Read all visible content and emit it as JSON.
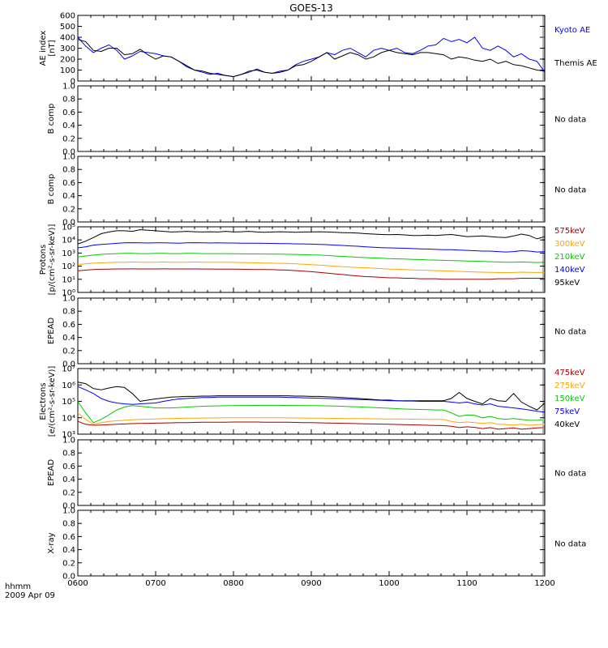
{
  "title": "GOES-13",
  "footer": {
    "line1": "hhmm",
    "line2": "2009 Apr 09"
  },
  "time_ticks": [
    "0600",
    "0700",
    "0800",
    "0900",
    "1000",
    "1100",
    "1200"
  ],
  "no_data_text": "No data",
  "chart_data": [
    {
      "type": "line",
      "id": "ae",
      "ylabel": [
        "AE index",
        "[nT]"
      ],
      "ylim": [
        0,
        600
      ],
      "yticks": [
        "0",
        "100",
        "200",
        "300",
        "400",
        "500",
        "600"
      ],
      "x_hours": [
        6.0,
        6.1,
        6.2,
        6.3,
        6.4,
        6.5,
        6.6,
        6.7,
        6.8,
        6.9,
        7.0,
        7.1,
        7.2,
        7.3,
        7.4,
        7.5,
        7.6,
        7.7,
        7.8,
        7.9,
        8.0,
        8.1,
        8.2,
        8.3,
        8.4,
        8.5,
        8.6,
        8.7,
        8.8,
        8.9,
        9.0,
        9.1,
        9.2,
        9.3,
        9.4,
        9.5,
        9.6,
        9.7,
        9.8,
        9.9,
        10.0,
        10.1,
        10.2,
        10.3,
        10.4,
        10.5,
        10.6,
        10.7,
        10.8,
        10.9,
        11.0,
        11.1,
        11.2,
        11.3,
        11.4,
        11.5,
        11.6,
        11.7,
        11.8,
        11.9,
        12.0
      ],
      "series": [
        {
          "name": "Kyoto AE",
          "color": "#0000ff",
          "values": [
            400,
            320,
            260,
            300,
            330,
            280,
            200,
            230,
            270,
            260,
            250,
            230,
            220,
            180,
            130,
            100,
            80,
            60,
            70,
            50,
            40,
            60,
            80,
            110,
            80,
            70,
            90,
            100,
            150,
            180,
            200,
            220,
            260,
            240,
            280,
            300,
            260,
            220,
            280,
            300,
            280,
            300,
            260,
            250,
            280,
            320,
            330,
            390,
            360,
            380,
            350,
            400,
            300,
            280,
            320,
            280,
            220,
            250,
            200,
            180,
            80
          ]
        },
        {
          "name": "Themis AE",
          "color": "#000000",
          "values": [
            380,
            360,
            280,
            270,
            300,
            300,
            240,
            250,
            290,
            240,
            200,
            230,
            220,
            180,
            140,
            100,
            90,
            70,
            60,
            50,
            40,
            60,
            90,
            100,
            80,
            70,
            80,
            100,
            140,
            150,
            180,
            220,
            260,
            200,
            230,
            260,
            240,
            200,
            220,
            260,
            280,
            260,
            250,
            240,
            260,
            260,
            250,
            240,
            200,
            220,
            210,
            190,
            180,
            200,
            160,
            180,
            150,
            140,
            120,
            100,
            90
          ]
        }
      ]
    },
    {
      "type": "line",
      "id": "bcomp1",
      "ylabel": [
        "B comp"
      ],
      "ylim": [
        0,
        1
      ],
      "yticks": [
        "0.0",
        "0.2",
        "0.4",
        "0.6",
        "0.8",
        "1.0"
      ],
      "series": []
    },
    {
      "type": "line",
      "id": "bcomp2",
      "ylabel": [
        "B comp"
      ],
      "ylim": [
        0,
        1
      ],
      "yticks": [
        "0.0",
        "0.2",
        "0.4",
        "0.6",
        "0.8",
        "1.0"
      ],
      "series": []
    },
    {
      "type": "line",
      "id": "protons",
      "log_scale": true,
      "ylabel": [
        "Protons",
        "[p/(cm²-s-sr-keV)]"
      ],
      "ylim": [
        1,
        100000
      ],
      "yticks": [
        "10⁰",
        "10¹",
        "10²",
        "10³",
        "10⁴",
        "10⁵"
      ],
      "x_hours": [
        6.0,
        6.1,
        6.2,
        6.3,
        6.4,
        6.5,
        6.6,
        6.7,
        6.8,
        6.9,
        7.0,
        7.1,
        7.2,
        7.3,
        7.4,
        7.5,
        7.6,
        7.7,
        7.8,
        7.9,
        8.0,
        8.1,
        8.2,
        8.3,
        8.4,
        8.5,
        8.6,
        8.7,
        8.8,
        8.9,
        9.0,
        9.1,
        9.2,
        9.3,
        9.4,
        9.5,
        9.6,
        9.7,
        9.8,
        9.9,
        10.0,
        10.1,
        10.2,
        10.3,
        10.4,
        10.5,
        10.6,
        10.7,
        10.8,
        10.9,
        11.0,
        11.1,
        11.2,
        11.3,
        11.4,
        11.5,
        11.6,
        11.7,
        11.8,
        11.9,
        12.0
      ],
      "series": [
        {
          "name": "95keV",
          "color": "#000000",
          "values": [
            5000,
            8000,
            15000,
            30000,
            40000,
            50000,
            50000,
            45000,
            60000,
            55000,
            50000,
            45000,
            40000,
            42000,
            45000,
            42000,
            40000,
            42000,
            40000,
            45000,
            40000,
            42000,
            45000,
            40000,
            38000,
            40000,
            42000,
            40000,
            38000,
            40000,
            40000,
            42000,
            40000,
            38000,
            36000,
            35000,
            33000,
            30000,
            28000,
            26000,
            25000,
            26000,
            24000,
            22000,
            22000,
            23000,
            22000,
            24000,
            26000,
            22000,
            18000,
            19000,
            20000,
            18000,
            16000,
            15000,
            20000,
            28000,
            22000,
            12000,
            18000
          ]
        },
        {
          "name": "140keV",
          "color": "#0000ff",
          "values": [
            2500,
            3000,
            4000,
            4500,
            5000,
            5500,
            6000,
            6200,
            6000,
            5800,
            6000,
            6000,
            5800,
            5600,
            6000,
            6200,
            6000,
            5800,
            6000,
            5800,
            5800,
            5700,
            5600,
            5600,
            5500,
            5400,
            5300,
            5200,
            5000,
            5000,
            4800,
            4600,
            4400,
            4000,
            3800,
            3500,
            3300,
            3000,
            2800,
            2600,
            2500,
            2400,
            2300,
            2200,
            2100,
            2000,
            1900,
            1800,
            1800,
            1700,
            1600,
            1500,
            1400,
            1400,
            1300,
            1200,
            1300,
            1500,
            1400,
            1200,
            1300
          ]
        },
        {
          "name": "210keV",
          "color": "#00cc00",
          "values": [
            500,
            600,
            700,
            800,
            850,
            900,
            950,
            950,
            900,
            900,
            950,
            950,
            900,
            900,
            950,
            950,
            900,
            900,
            900,
            900,
            880,
            870,
            860,
            850,
            840,
            830,
            820,
            800,
            780,
            750,
            720,
            700,
            650,
            600,
            560,
            520,
            480,
            450,
            420,
            400,
            380,
            360,
            350,
            330,
            320,
            300,
            290,
            280,
            270,
            260,
            250,
            240,
            230,
            220,
            210,
            200,
            200,
            210,
            200,
            190,
            200
          ]
        },
        {
          "name": "300keV",
          "color": "#ffa500",
          "values": [
            130,
            150,
            170,
            180,
            190,
            200,
            200,
            210,
            200,
            200,
            200,
            210,
            200,
            200,
            200,
            210,
            200,
            200,
            200,
            200,
            195,
            190,
            185,
            180,
            175,
            170,
            165,
            160,
            150,
            140,
            130,
            120,
            110,
            100,
            90,
            85,
            80,
            75,
            70,
            65,
            60,
            58,
            55,
            52,
            50,
            48,
            46,
            44,
            42,
            40,
            38,
            36,
            35,
            34,
            33,
            32,
            33,
            35,
            34,
            33,
            34
          ]
        },
        {
          "name": "575keV",
          "color": "#aa0000",
          "values": [
            45,
            50,
            55,
            58,
            60,
            62,
            62,
            63,
            62,
            62,
            62,
            63,
            62,
            62,
            62,
            62,
            61,
            61,
            60,
            60,
            59,
            58,
            57,
            56,
            55,
            54,
            52,
            50,
            46,
            42,
            38,
            34,
            30,
            26,
            23,
            20,
            18,
            16,
            15,
            14,
            13,
            13,
            12,
            12,
            11,
            11,
            11,
            10,
            10,
            10,
            10,
            10,
            10,
            10,
            11,
            11,
            11,
            12,
            12,
            12,
            12
          ]
        }
      ]
    },
    {
      "type": "line",
      "id": "epead1",
      "ylabel": [
        "EPEAD"
      ],
      "ylim": [
        0,
        1
      ],
      "yticks": [
        "0.0",
        "0.2",
        "0.4",
        "0.6",
        "0.8",
        "1.0"
      ],
      "series": []
    },
    {
      "type": "line",
      "id": "electrons",
      "log_scale": true,
      "ylabel": [
        "Electrons",
        "[e/(cm²-s-sr-keV)]"
      ],
      "ylim": [
        1000,
        10000000
      ],
      "yticks": [
        "10³",
        "10⁴",
        "10⁵",
        "10⁶",
        "10⁷"
      ],
      "x_hours": [
        6.0,
        6.1,
        6.2,
        6.3,
        6.4,
        6.5,
        6.6,
        6.7,
        6.8,
        6.9,
        7.0,
        7.1,
        7.2,
        7.3,
        7.4,
        7.5,
        7.6,
        7.7,
        7.8,
        7.9,
        8.0,
        8.1,
        8.2,
        8.3,
        8.4,
        8.5,
        8.6,
        8.7,
        8.8,
        8.9,
        9.0,
        9.1,
        9.2,
        9.3,
        9.4,
        9.5,
        9.6,
        9.7,
        9.8,
        9.9,
        10.0,
        10.1,
        10.2,
        10.3,
        10.4,
        10.5,
        10.6,
        10.7,
        10.8,
        10.9,
        11.0,
        11.1,
        11.2,
        11.3,
        11.4,
        11.5,
        11.6,
        11.7,
        11.8,
        11.9,
        12.0
      ],
      "series": [
        {
          "name": "40keV",
          "color": "#000000",
          "values": [
            1500000,
            1200000,
            600000,
            500000,
            650000,
            800000,
            700000,
            300000,
            100000,
            120000,
            140000,
            160000,
            180000,
            190000,
            200000,
            200000,
            210000,
            210000,
            220000,
            220000,
            220000,
            220000,
            220000,
            220000,
            220000,
            220000,
            220000,
            220000,
            210000,
            210000,
            200000,
            200000,
            190000,
            180000,
            170000,
            160000,
            150000,
            140000,
            130000,
            120000,
            120000,
            110000,
            110000,
            110000,
            110000,
            110000,
            110000,
            110000,
            150000,
            350000,
            150000,
            100000,
            70000,
            150000,
            110000,
            100000,
            300000,
            90000,
            50000,
            30000,
            80000
          ]
        },
        {
          "name": "75keV",
          "color": "#0000ff",
          "values": [
            800000,
            500000,
            300000,
            150000,
            100000,
            80000,
            70000,
            65000,
            70000,
            75000,
            80000,
            100000,
            120000,
            140000,
            150000,
            160000,
            170000,
            170000,
            180000,
            180000,
            180000,
            180000,
            180000,
            180000,
            180000,
            180000,
            180000,
            175000,
            170000,
            165000,
            160000,
            155000,
            150000,
            145000,
            140000,
            135000,
            130000,
            125000,
            120000,
            115000,
            110000,
            110000,
            105000,
            105000,
            100000,
            100000,
            100000,
            100000,
            90000,
            80000,
            90000,
            70000,
            60000,
            70000,
            50000,
            45000,
            40000,
            35000,
            30000,
            25000,
            22000
          ]
        },
        {
          "name": "150keV",
          "color": "#00cc00",
          "values": [
            100000,
            20000,
            5000,
            8000,
            15000,
            30000,
            45000,
            55000,
            50000,
            45000,
            40000,
            40000,
            40000,
            42000,
            45000,
            48000,
            50000,
            52000,
            53000,
            54000,
            55000,
            56000,
            56000,
            57000,
            57000,
            57000,
            57000,
            56000,
            56000,
            55000,
            55000,
            54000,
            53000,
            52000,
            50000,
            48000,
            46000,
            44000,
            42000,
            40000,
            38000,
            36000,
            34000,
            33000,
            32000,
            31000,
            30000,
            30000,
            20000,
            12000,
            15000,
            14000,
            10000,
            12000,
            9000,
            8000,
            9000,
            8000,
            7000,
            7000,
            8000
          ]
        },
        {
          "name": "275keV",
          "color": "#ffa500",
          "values": [
            20000,
            8000,
            4000,
            5000,
            6000,
            6500,
            7000,
            7500,
            8000,
            8200,
            8500,
            8800,
            9000,
            9200,
            9400,
            9500,
            9600,
            9700,
            9800,
            9900,
            10000,
            10000,
            10000,
            10000,
            10000,
            10000,
            9900,
            9800,
            9700,
            9600,
            9500,
            9400,
            9300,
            9200,
            9100,
            9000,
            8900,
            8800,
            8700,
            8600,
            8500,
            8400,
            8300,
            8200,
            8100,
            8000,
            7900,
            7800,
            6000,
            5000,
            5500,
            5000,
            4500,
            5000,
            4000,
            3800,
            3600,
            4000,
            3500,
            3800,
            4000
          ]
        },
        {
          "name": "475keV",
          "color": "#aa0000",
          "values": [
            6000,
            4000,
            3500,
            3600,
            3800,
            4000,
            4200,
            4400,
            4500,
            4600,
            4700,
            4800,
            4900,
            5000,
            5100,
            5200,
            5300,
            5300,
            5400,
            5400,
            5500,
            5500,
            5500,
            5500,
            5400,
            5400,
            5300,
            5300,
            5200,
            5100,
            5000,
            4900,
            4800,
            4700,
            4600,
            4500,
            4400,
            4300,
            4200,
            4100,
            4000,
            3900,
            3800,
            3700,
            3600,
            3500,
            3400,
            3300,
            3000,
            2500,
            2800,
            2600,
            2200,
            2500,
            2000,
            2200,
            2400,
            2000,
            2200,
            2400,
            2500
          ]
        }
      ]
    },
    {
      "type": "line",
      "id": "epead2",
      "ylabel": [
        "EPEAD"
      ],
      "ylim": [
        0,
        1
      ],
      "yticks": [
        "0.0",
        "0.2",
        "0.4",
        "0.6",
        "0.8",
        "1.0"
      ],
      "series": []
    },
    {
      "type": "line",
      "id": "xray",
      "ylabel": [
        "X-ray"
      ],
      "ylim": [
        0,
        1
      ],
      "yticks": [
        "0.0",
        "0.2",
        "0.4",
        "0.6",
        "0.8",
        "1.0"
      ],
      "series": []
    }
  ]
}
